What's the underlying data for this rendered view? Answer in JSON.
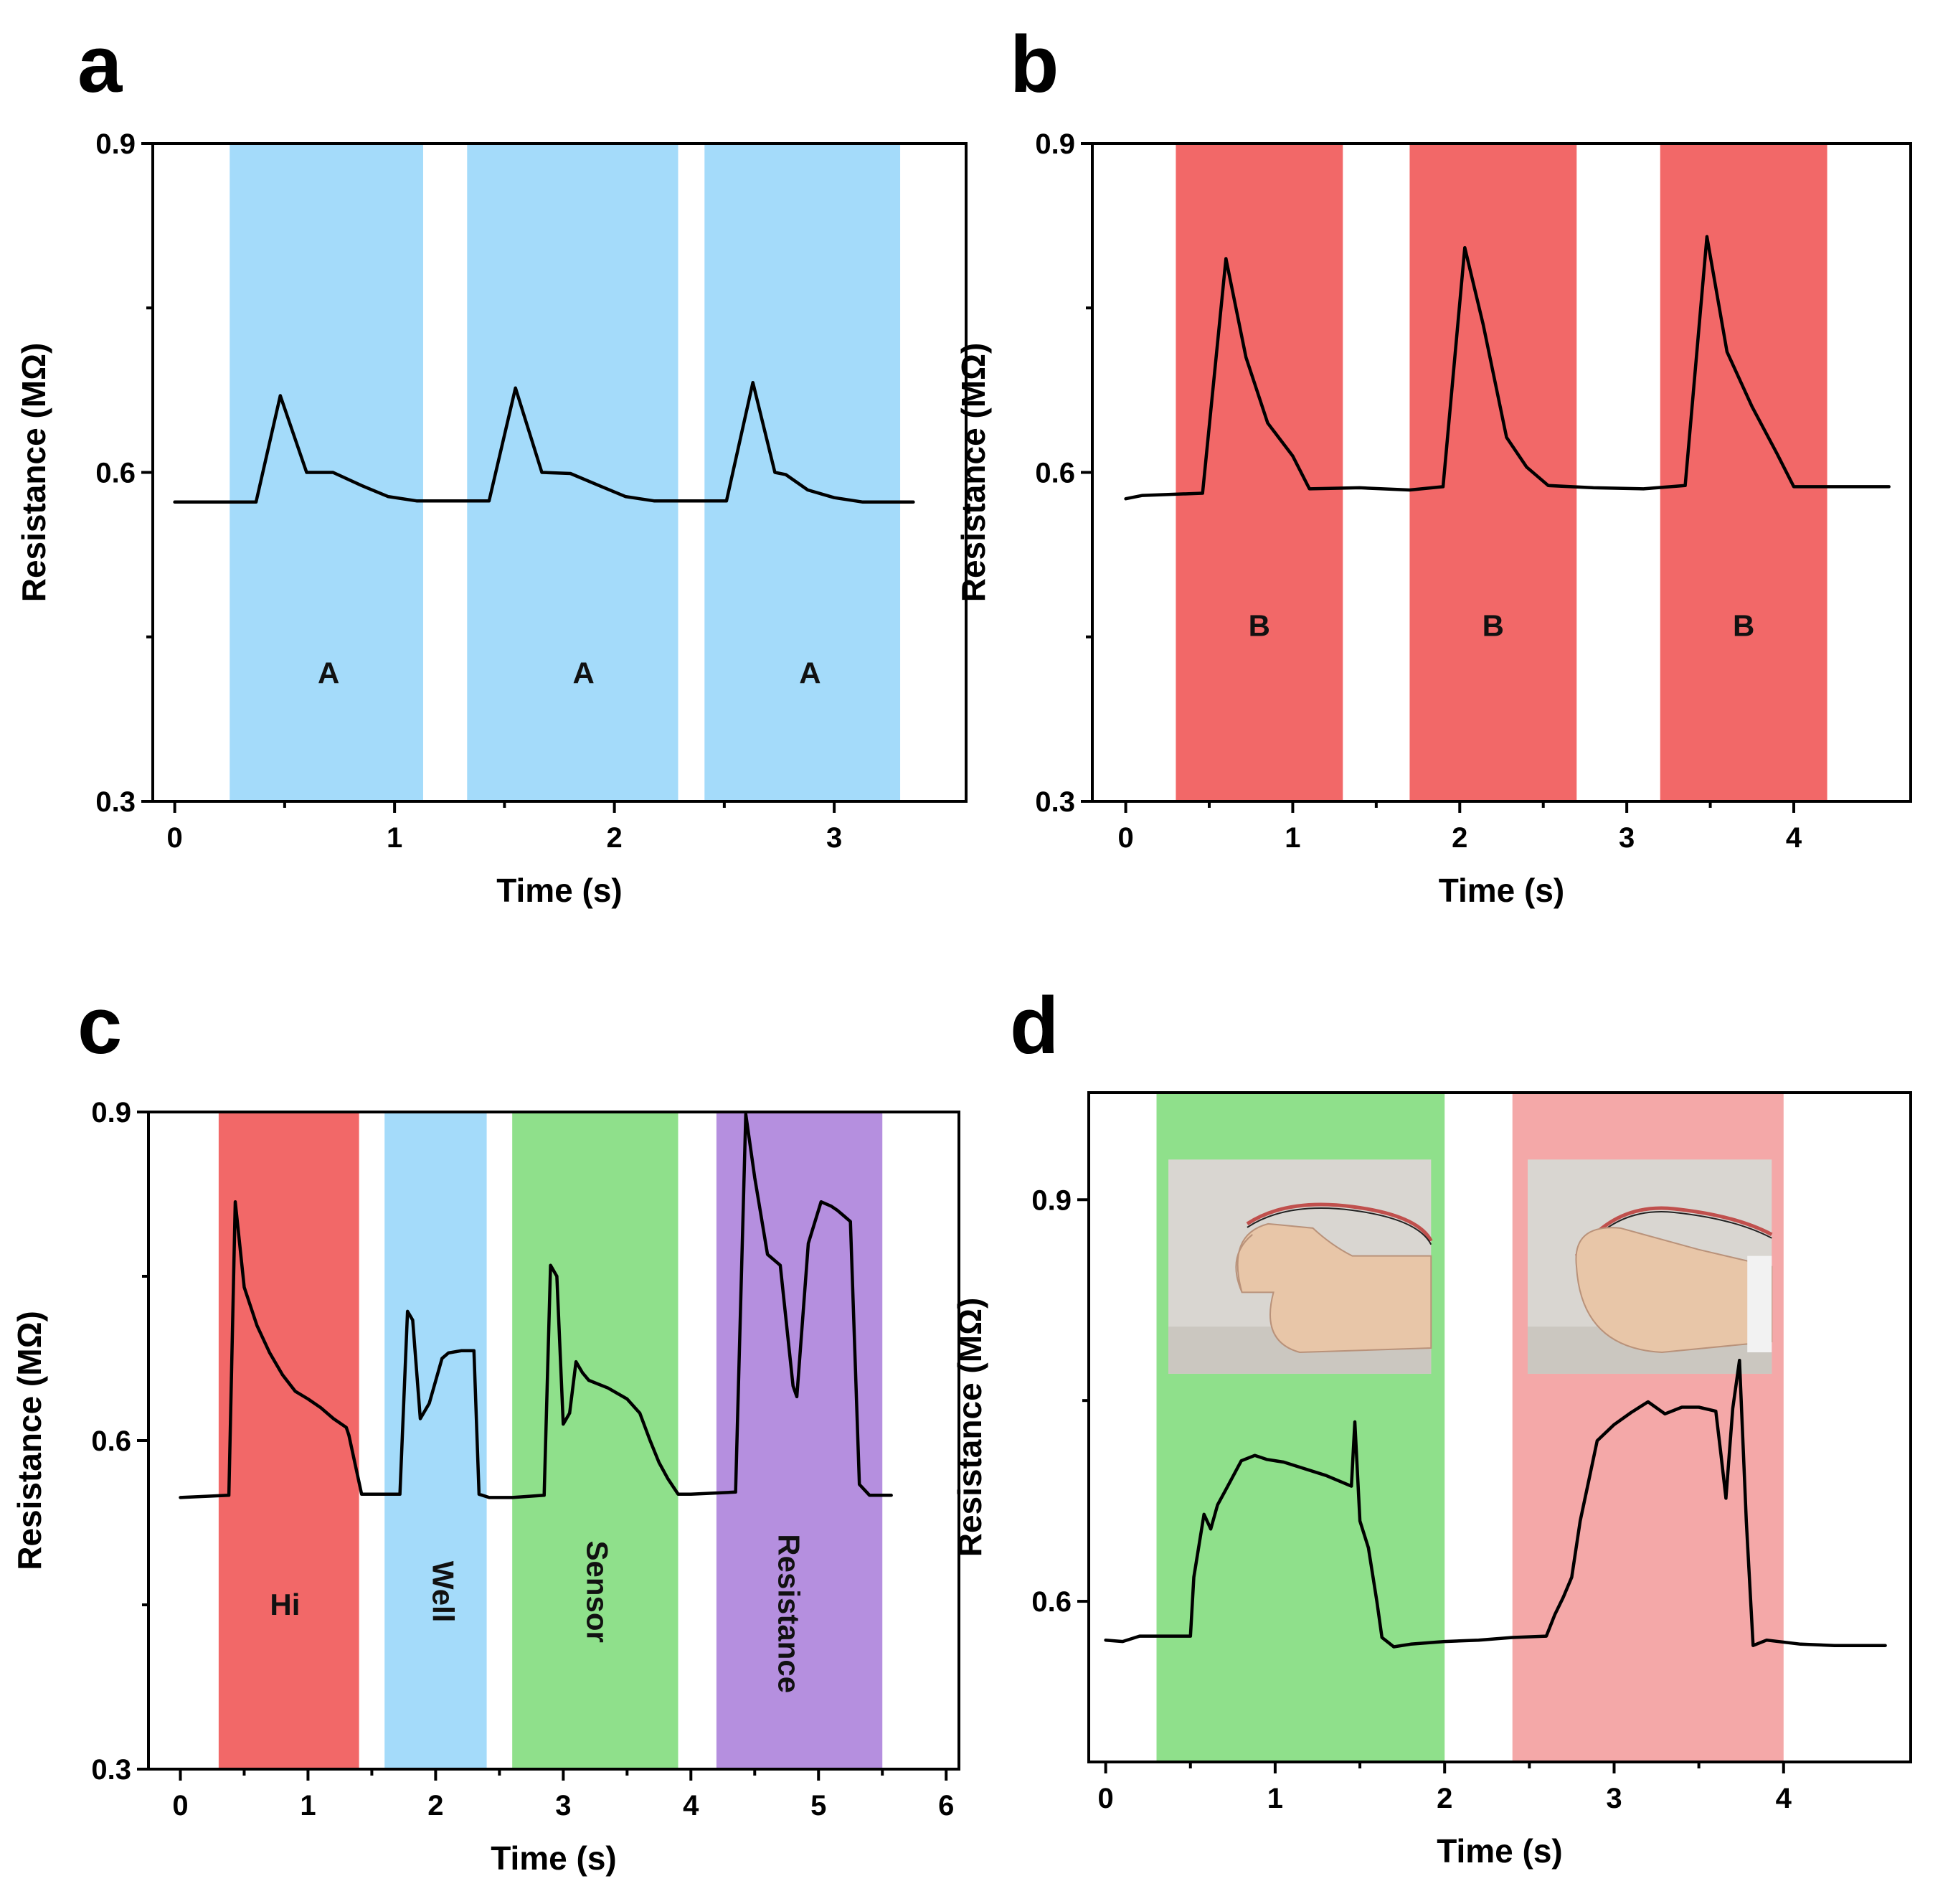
{
  "figure": {
    "panels": [
      "a",
      "b",
      "c",
      "d"
    ]
  },
  "chart_data": [
    {
      "panel": "a",
      "type": "line",
      "title": "",
      "xlabel": "Time (s)",
      "ylabel": "Resistance (MΩ)",
      "xlim": [
        -0.1,
        3.6
      ],
      "ylim": [
        0.3,
        0.9
      ],
      "xticks": [
        0,
        1,
        2,
        3
      ],
      "yticks": [
        0.3,
        0.6,
        0.9
      ],
      "grid": false,
      "bands": [
        {
          "start": 0.25,
          "end": 1.13,
          "color": "#a4dbfa",
          "label": "A",
          "label_x": 0.7,
          "label_y": 0.415,
          "rotate": 0
        },
        {
          "start": 1.33,
          "end": 2.29,
          "color": "#a4dbfa",
          "label": "A",
          "label_x": 1.86,
          "label_y": 0.415,
          "rotate": 0
        },
        {
          "start": 2.41,
          "end": 3.3,
          "color": "#a4dbfa",
          "label": "A",
          "label_x": 2.89,
          "label_y": 0.415,
          "rotate": 0
        }
      ],
      "series": [
        {
          "name": "Resistance",
          "x": [
            0,
            0.37,
            0.48,
            0.6,
            0.72,
            0.85,
            0.97,
            1.1,
            1.43,
            1.55,
            1.67,
            1.8,
            1.93,
            2.05,
            2.18,
            2.51,
            2.63,
            2.73,
            2.78,
            2.88,
            3.0,
            3.13,
            3.36
          ],
          "y": [
            0.573,
            0.573,
            0.67,
            0.6,
            0.6,
            0.588,
            0.578,
            0.574,
            0.574,
            0.677,
            0.6,
            0.599,
            0.588,
            0.578,
            0.574,
            0.574,
            0.682,
            0.6,
            0.598,
            0.584,
            0.577,
            0.573,
            0.573
          ]
        }
      ]
    },
    {
      "panel": "b",
      "type": "line",
      "title": "",
      "xlabel": "Time (s)",
      "ylabel": "Resistance (MΩ)",
      "xlim": [
        -0.2,
        4.7
      ],
      "ylim": [
        0.3,
        0.9
      ],
      "xticks": [
        0,
        1,
        2,
        3,
        4
      ],
      "yticks": [
        0.3,
        0.6,
        0.9
      ],
      "grid": false,
      "bands": [
        {
          "start": 0.3,
          "end": 1.3,
          "color": "#f26868",
          "label": "B",
          "label_x": 0.8,
          "label_y": 0.458,
          "rotate": 0
        },
        {
          "start": 1.7,
          "end": 2.7,
          "color": "#f26868",
          "label": "B",
          "label_x": 2.2,
          "label_y": 0.458,
          "rotate": 0
        },
        {
          "start": 3.2,
          "end": 4.2,
          "color": "#f26868",
          "label": "B",
          "label_x": 3.7,
          "label_y": 0.458,
          "rotate": 0
        }
      ],
      "series": [
        {
          "name": "Resistance",
          "x": [
            0,
            0.1,
            0.46,
            0.6,
            0.72,
            0.85,
            1.0,
            1.1,
            1.4,
            1.7,
            1.9,
            2.03,
            2.14,
            2.28,
            2.4,
            2.53,
            2.8,
            3.1,
            3.35,
            3.48,
            3.6,
            3.75,
            3.9,
            4.0,
            4.57
          ],
          "y": [
            0.576,
            0.579,
            0.581,
            0.795,
            0.705,
            0.645,
            0.615,
            0.585,
            0.586,
            0.584,
            0.587,
            0.805,
            0.735,
            0.632,
            0.605,
            0.588,
            0.586,
            0.585,
            0.588,
            0.815,
            0.71,
            0.66,
            0.617,
            0.587,
            0.587
          ]
        }
      ]
    },
    {
      "panel": "c",
      "type": "line",
      "title": "",
      "xlabel": "Time (s)",
      "ylabel": "Resistance (MΩ)",
      "xlim": [
        -0.25,
        6.1
      ],
      "ylim": [
        0.3,
        0.9
      ],
      "xticks": [
        0,
        1,
        2,
        3,
        4,
        5,
        6
      ],
      "yticks": [
        0.3,
        0.6,
        0.9
      ],
      "grid": false,
      "bands": [
        {
          "start": 0.3,
          "end": 1.4,
          "color": "#f26868",
          "label": "Hi",
          "label_x": 0.82,
          "label_y": 0.448,
          "rotate": 0
        },
        {
          "start": 1.6,
          "end": 2.4,
          "color": "#a4dbfa",
          "label": "Well",
          "label_x": 2.04,
          "label_y": 0.462,
          "rotate": 90
        },
        {
          "start": 2.6,
          "end": 3.9,
          "color": "#8fe08b",
          "label": "Sensor",
          "label_x": 3.25,
          "label_y": 0.462,
          "rotate": 90
        },
        {
          "start": 4.2,
          "end": 5.5,
          "color": "#b58fdf",
          "label": "Resistance",
          "label_x": 4.75,
          "label_y": 0.442,
          "rotate": 90
        }
      ],
      "series": [
        {
          "name": "Resistance",
          "x": [
            0,
            0.38,
            0.43,
            0.5,
            0.6,
            0.7,
            0.8,
            0.9,
            1.0,
            1.1,
            1.2,
            1.3,
            1.32,
            1.42,
            1.6,
            1.72,
            1.78,
            1.82,
            1.88,
            1.95,
            2.05,
            2.1,
            2.2,
            2.3,
            2.34,
            2.42,
            2.6,
            2.85,
            2.9,
            2.95,
            3.0,
            3.05,
            3.1,
            3.15,
            3.2,
            3.35,
            3.5,
            3.6,
            3.68,
            3.75,
            3.82,
            3.9,
            4.0,
            4.35,
            4.43,
            4.5,
            4.6,
            4.7,
            4.8,
            4.83,
            4.92,
            5.02,
            5.1,
            5.15,
            5.2,
            5.25,
            5.32,
            5.4,
            5.57
          ],
          "y": [
            0.548,
            0.55,
            0.818,
            0.74,
            0.705,
            0.68,
            0.66,
            0.645,
            0.638,
            0.63,
            0.62,
            0.612,
            0.605,
            0.551,
            0.551,
            0.551,
            0.718,
            0.71,
            0.62,
            0.634,
            0.675,
            0.68,
            0.682,
            0.682,
            0.551,
            0.548,
            0.548,
            0.55,
            0.76,
            0.75,
            0.615,
            0.625,
            0.672,
            0.662,
            0.655,
            0.648,
            0.638,
            0.625,
            0.6,
            0.58,
            0.565,
            0.551,
            0.551,
            0.553,
            0.898,
            0.84,
            0.77,
            0.76,
            0.65,
            0.64,
            0.78,
            0.818,
            0.814,
            0.81,
            0.805,
            0.8,
            0.56,
            0.55,
            0.55
          ]
        }
      ]
    },
    {
      "panel": "d",
      "type": "line",
      "title": "",
      "xlabel": "Time (s)",
      "ylabel": "Resistance (MΩ)",
      "xlim": [
        -0.1,
        4.75
      ],
      "ylim": [
        0.48,
        0.98
      ],
      "xticks": [
        0,
        1,
        2,
        3,
        4
      ],
      "yticks": [
        0.6,
        0.9
      ],
      "grid": false,
      "bands": [
        {
          "start": 0.3,
          "end": 2.0,
          "color": "#8fe08b",
          "label": "",
          "label_x": 0,
          "label_y": 0,
          "rotate": 0
        },
        {
          "start": 2.4,
          "end": 4.0,
          "color": "#f4a8a8",
          "label": "",
          "label_x": 0,
          "label_y": 0,
          "rotate": 0
        }
      ],
      "photos": [
        {
          "name": "hand-photo-bend",
          "x0": 0.37,
          "x1": 1.92,
          "y0": 0.77,
          "y1": 0.93
        },
        {
          "name": "hand-photo-fist",
          "x0": 2.49,
          "x1": 3.93,
          "y0": 0.77,
          "y1": 0.93
        }
      ],
      "series": [
        {
          "name": "Resistance",
          "x": [
            0,
            0.1,
            0.2,
            0.3,
            0.5,
            0.52,
            0.58,
            0.62,
            0.66,
            0.72,
            0.8,
            0.88,
            0.95,
            1.05,
            1.15,
            1.3,
            1.45,
            1.47,
            1.5,
            1.55,
            1.6,
            1.63,
            1.7,
            1.8,
            2.0,
            2.2,
            2.4,
            2.6,
            2.65,
            2.7,
            2.75,
            2.8,
            2.85,
            2.9,
            3.0,
            3.1,
            3.2,
            3.3,
            3.4,
            3.5,
            3.6,
            3.63,
            3.66,
            3.7,
            3.74,
            3.78,
            3.82,
            3.9,
            4.1,
            4.3,
            4.6
          ],
          "y": [
            0.571,
            0.57,
            0.574,
            0.574,
            0.574,
            0.618,
            0.665,
            0.654,
            0.672,
            0.686,
            0.705,
            0.709,
            0.706,
            0.704,
            0.7,
            0.694,
            0.686,
            0.734,
            0.66,
            0.64,
            0.6,
            0.573,
            0.566,
            0.568,
            0.57,
            0.571,
            0.573,
            0.574,
            0.59,
            0.603,
            0.618,
            0.66,
            0.69,
            0.72,
            0.732,
            0.741,
            0.749,
            0.74,
            0.745,
            0.745,
            0.742,
            0.71,
            0.677,
            0.744,
            0.78,
            0.66,
            0.567,
            0.571,
            0.568,
            0.567,
            0.567
          ]
        }
      ]
    }
  ]
}
